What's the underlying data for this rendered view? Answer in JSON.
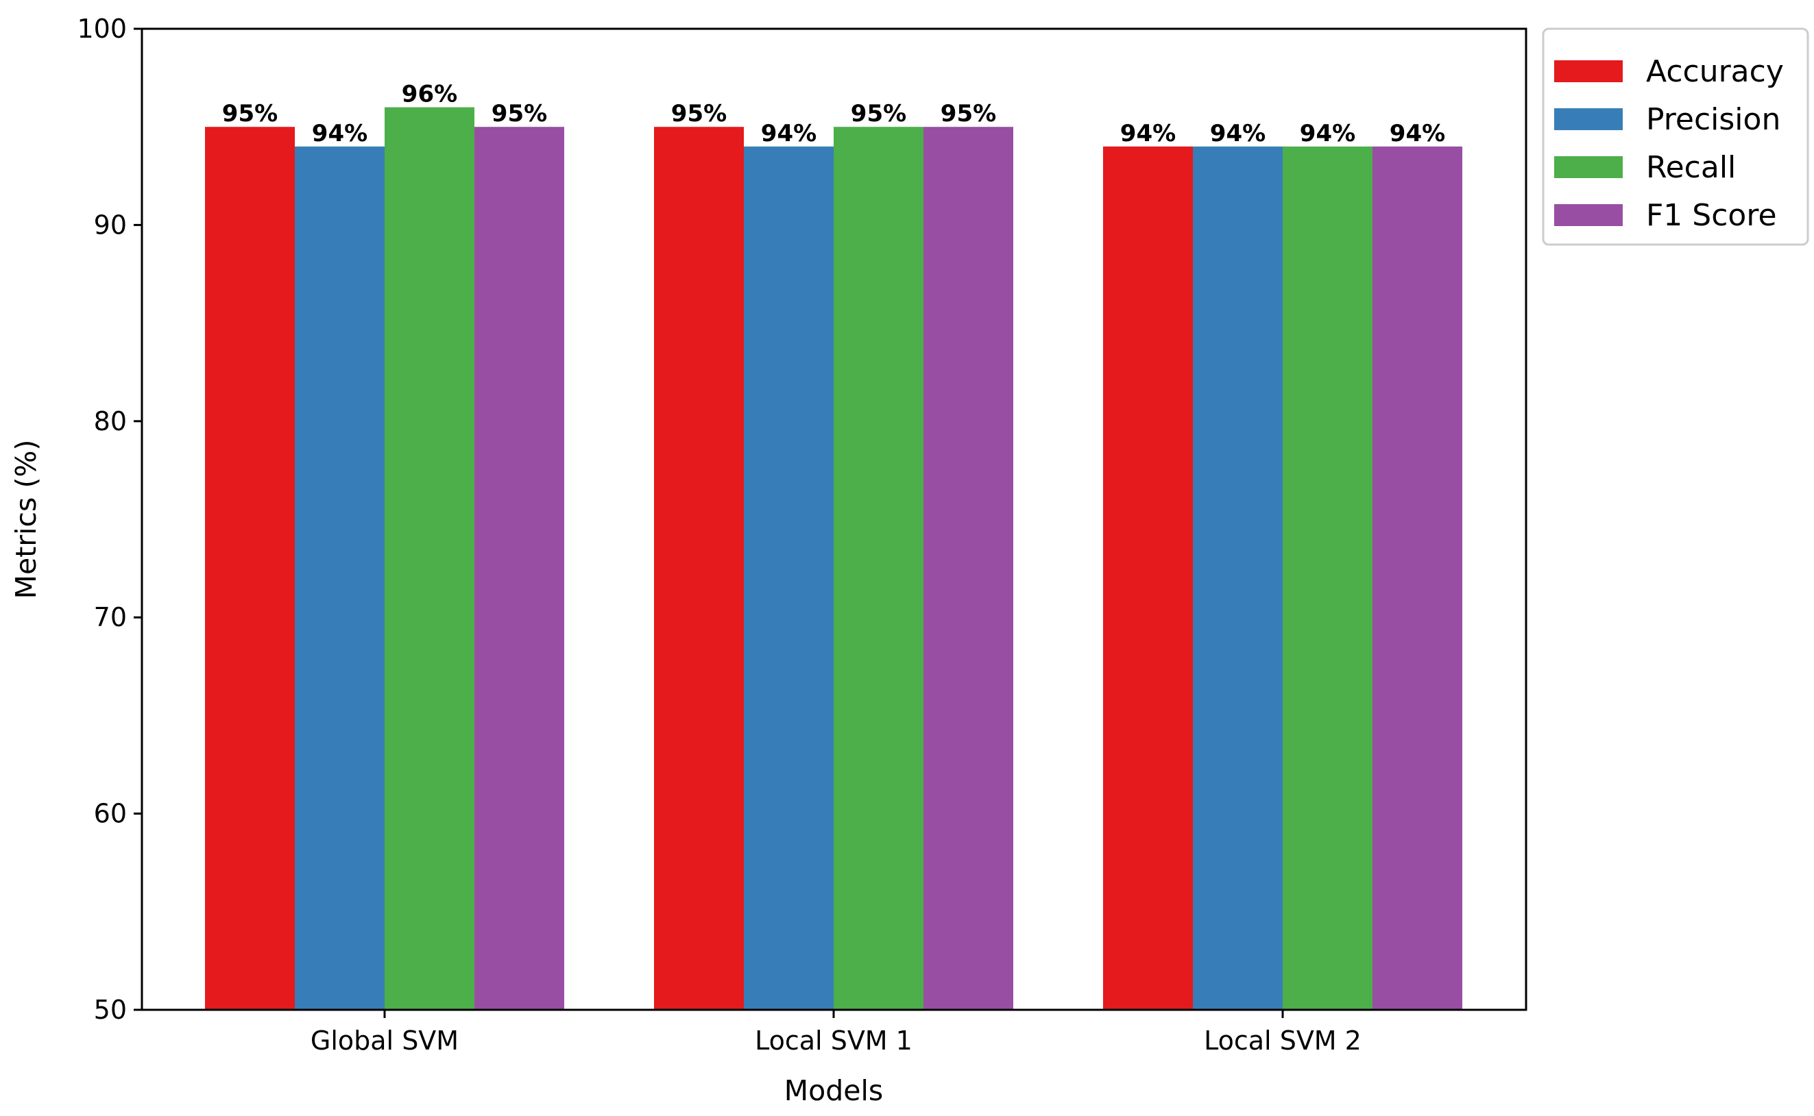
{
  "chart_data": {
    "type": "bar",
    "categories": [
      "Global SVM",
      "Local SVM 1",
      "Local SVM 2"
    ],
    "series": [
      {
        "name": "Accuracy",
        "color": "#e41a1c",
        "values": [
          95,
          95,
          94
        ],
        "labels": [
          "95%",
          "95%",
          "94%"
        ]
      },
      {
        "name": "Precision",
        "color": "#377eb8",
        "values": [
          94,
          94,
          94
        ],
        "labels": [
          "94%",
          "94%",
          "94%"
        ]
      },
      {
        "name": "Recall",
        "color": "#4daf4a",
        "values": [
          96,
          95,
          94
        ],
        "labels": [
          "96%",
          "95%",
          "94%"
        ]
      },
      {
        "name": "F1 Score",
        "color": "#984ea3",
        "values": [
          95,
          95,
          94
        ],
        "labels": [
          "95%",
          "95%",
          "94%"
        ]
      }
    ],
    "xlabel": "Models",
    "ylabel": "Metrics (%)",
    "ylim": [
      50,
      100
    ],
    "yticks": [
      50,
      60,
      70,
      80,
      90,
      100
    ],
    "grid": false,
    "legend_position": "outside-top-right"
  }
}
